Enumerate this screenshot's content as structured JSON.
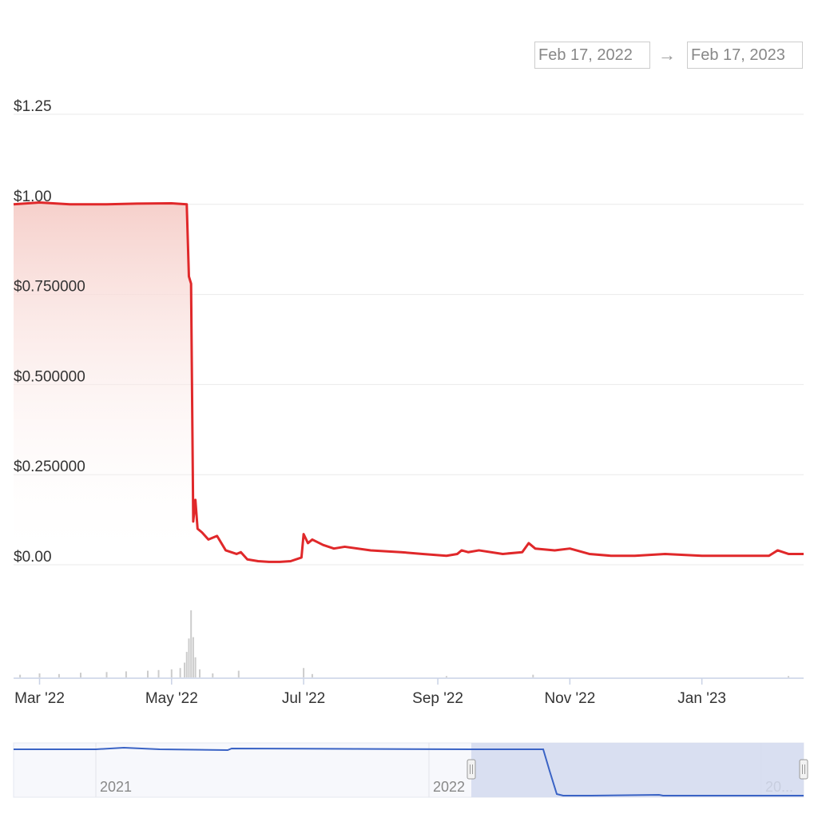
{
  "range_selector": {
    "from": "Feb 17, 2022",
    "arrow": "→",
    "to": "Feb 17, 2023"
  },
  "colors": {
    "price_line": "#e0282a",
    "area_top": "#f6d0cb",
    "grid": "#eaeaea",
    "volume": "#cccccc",
    "navigator_line": "#3a63c5",
    "navigator_mask": "#d3dbee",
    "navigator_bg": "#f7f8fc"
  },
  "chart_data": {
    "type": "line",
    "x_start": "2022-02-17",
    "x_end": "2023-02-17",
    "ylim": [
      0,
      1.25
    ],
    "y_ticks": [
      {
        "value": 1.25,
        "label": "$1.25"
      },
      {
        "value": 1.0,
        "label": "$1.00"
      },
      {
        "value": 0.75,
        "label": "$0.750000"
      },
      {
        "value": 0.5,
        "label": "$0.500000"
      },
      {
        "value": 0.25,
        "label": "$0.250000"
      },
      {
        "value": 0.0,
        "label": "$0.00"
      }
    ],
    "x_ticks": [
      {
        "date": "2022-03-01",
        "label": "Mar '22"
      },
      {
        "date": "2022-05-01",
        "label": "May '22"
      },
      {
        "date": "2022-07-01",
        "label": "Jul '22"
      },
      {
        "date": "2022-09-01",
        "label": "Sep '22"
      },
      {
        "date": "2022-11-01",
        "label": "Nov '22"
      },
      {
        "date": "2023-01-01",
        "label": "Jan '23"
      }
    ],
    "series": [
      {
        "x": [
          "2022-02-17",
          "2022-03-01",
          "2022-03-15",
          "2022-04-01",
          "2022-04-15",
          "2022-05-01",
          "2022-05-08",
          "2022-05-09",
          "2022-05-10",
          "2022-05-11",
          "2022-05-12",
          "2022-05-13",
          "2022-05-15",
          "2022-05-18",
          "2022-05-22",
          "2022-05-26",
          "2022-05-31",
          "2022-06-02",
          "2022-06-05",
          "2022-06-10",
          "2022-06-15",
          "2022-06-20",
          "2022-06-25",
          "2022-06-30",
          "2022-07-01",
          "2022-07-03",
          "2022-07-05",
          "2022-07-10",
          "2022-07-15",
          "2022-07-20",
          "2022-08-01",
          "2022-08-15",
          "2022-08-25",
          "2022-09-05",
          "2022-09-10",
          "2022-09-12",
          "2022-09-15",
          "2022-09-20",
          "2022-10-01",
          "2022-10-10",
          "2022-10-13",
          "2022-10-16",
          "2022-10-25",
          "2022-11-01",
          "2022-11-10",
          "2022-11-20",
          "2022-12-01",
          "2022-12-15",
          "2023-01-01",
          "2023-01-20",
          "2023-02-01",
          "2023-02-05",
          "2023-02-10",
          "2023-02-17"
        ],
        "y": [
          1.0,
          1.005,
          1.0,
          1.0,
          1.002,
          1.003,
          1.0,
          0.8,
          0.78,
          0.12,
          0.18,
          0.1,
          0.09,
          0.07,
          0.08,
          0.04,
          0.03,
          0.035,
          0.015,
          0.01,
          0.008,
          0.008,
          0.01,
          0.02,
          0.085,
          0.06,
          0.07,
          0.055,
          0.045,
          0.05,
          0.04,
          0.035,
          0.03,
          0.025,
          0.03,
          0.04,
          0.035,
          0.04,
          0.03,
          0.035,
          0.06,
          0.045,
          0.04,
          0.045,
          0.03,
          0.025,
          0.025,
          0.03,
          0.025,
          0.025,
          0.025,
          0.04,
          0.03,
          0.03
        ]
      }
    ],
    "volume": {
      "x": [
        "2022-02-20",
        "2022-03-01",
        "2022-03-10",
        "2022-03-20",
        "2022-04-01",
        "2022-04-10",
        "2022-04-20",
        "2022-04-25",
        "2022-05-01",
        "2022-05-05",
        "2022-05-07",
        "2022-05-08",
        "2022-05-09",
        "2022-05-10",
        "2022-05-11",
        "2022-05-12",
        "2022-05-14",
        "2022-05-20",
        "2022-06-01",
        "2022-07-01",
        "2022-07-05",
        "2022-09-05",
        "2022-10-15",
        "2023-02-10"
      ],
      "v": [
        4,
        6,
        5,
        7,
        8,
        9,
        10,
        11,
        12,
        14,
        22,
        38,
        58,
        100,
        60,
        30,
        12,
        6,
        10,
        14,
        5,
        2,
        4,
        2
      ]
    },
    "navigator": {
      "labels": [
        "2021",
        "2022",
        "20..."
      ],
      "selected_from": "2022-02-17",
      "selected_to": "2023-02-17"
    }
  }
}
